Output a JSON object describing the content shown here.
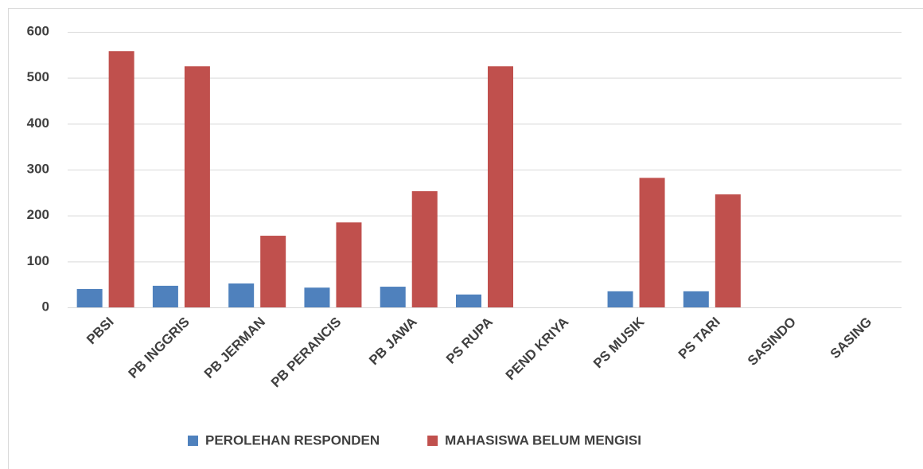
{
  "chart_data": {
    "type": "bar",
    "categories": [
      "PBSI",
      "PB INGGRIS",
      "PB JERMAN",
      "PB PERANCIS",
      "PB JAWA",
      "PS RUPA",
      "PEND KRIYA",
      "PS MUSIK",
      "PS TARI",
      "SASINDO",
      "SASING"
    ],
    "series": [
      {
        "name": "PEROLEHAN RESPONDEN",
        "color": "#4f81bd",
        "values": [
          40,
          47,
          52,
          43,
          45,
          28,
          0,
          35,
          35,
          0,
          0
        ]
      },
      {
        "name": "MAHASISWA BELUM MENGISI",
        "color": "#c0504d",
        "values": [
          558,
          525,
          156,
          185,
          253,
          525,
          0,
          282,
          246,
          0,
          0
        ]
      }
    ],
    "ylim": [
      0,
      600
    ],
    "yticks": [
      0,
      100,
      200,
      300,
      400,
      500,
      600
    ],
    "grid": true,
    "legend": "bottom"
  }
}
